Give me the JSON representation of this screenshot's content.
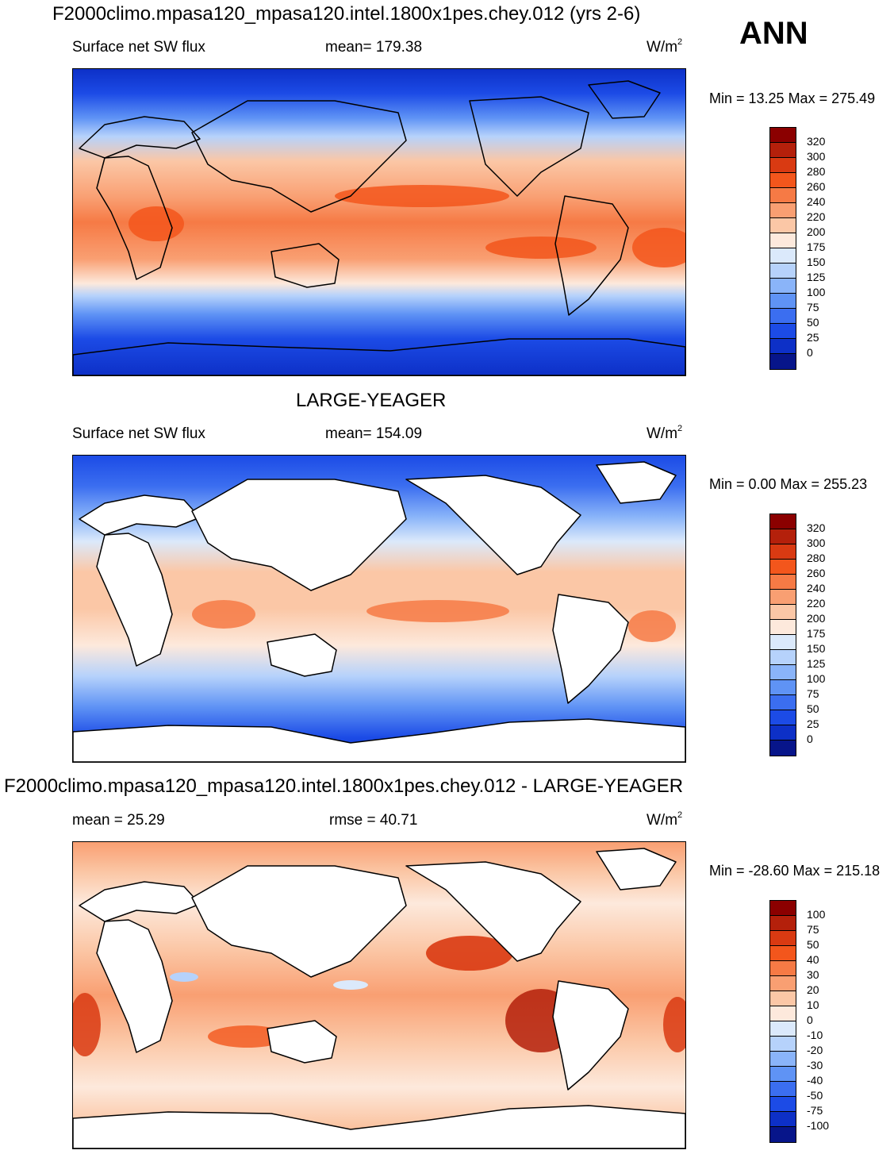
{
  "season": "ANN",
  "panels": [
    {
      "title": "F2000climo.mpasa120_mpasa120.intel.1800x1pes.chey.012 (yrs 2-6)",
      "left_text": "Surface net SW flux",
      "center_text": "mean= 179.38",
      "units": "W/m",
      "units_sup": "2",
      "minmax": "Min =   13.25 Max = 275.49",
      "levels": [
        "320",
        "300",
        "280",
        "260",
        "240",
        "220",
        "200",
        "175",
        "150",
        "125",
        "100",
        "75",
        "50",
        "25",
        "0"
      ],
      "colors": [
        "#8b0000",
        "#b4200b",
        "#d93a12",
        "#f3561c",
        "#f67a45",
        "#f99f72",
        "#fbc7a6",
        "#fde9dc",
        "#dbe9fb",
        "#b6d2fb",
        "#8ab4f9",
        "#5f93f5",
        "#3b6ef0",
        "#1c4be6",
        "#0d30c7",
        "#07158a"
      ]
    },
    {
      "title": "LARGE-YEAGER",
      "left_text": "Surface net SW flux",
      "center_text": "mean= 154.09",
      "units": "W/m",
      "units_sup": "2",
      "minmax": "Min =    0.00 Max = 255.23",
      "levels": [
        "320",
        "300",
        "280",
        "260",
        "240",
        "220",
        "200",
        "175",
        "150",
        "125",
        "100",
        "75",
        "50",
        "25",
        "0"
      ],
      "colors": [
        "#8b0000",
        "#b4200b",
        "#d93a12",
        "#f3561c",
        "#f67a45",
        "#f99f72",
        "#fbc7a6",
        "#fde9dc",
        "#dbe9fb",
        "#b6d2fb",
        "#8ab4f9",
        "#5f93f5",
        "#3b6ef0",
        "#1c4be6",
        "#0d30c7",
        "#07158a"
      ]
    },
    {
      "title": "F2000climo.mpasa120_mpasa120.intel.1800x1pes.chey.012 - LARGE-YEAGER",
      "left_text": "mean =  25.29",
      "center_text": "rmse =  40.71",
      "units": "W/m",
      "units_sup": "2",
      "minmax": "Min = -28.60 Max = 215.18",
      "levels": [
        "100",
        "75",
        "50",
        "40",
        "30",
        "20",
        "10",
        "0",
        "-10",
        "-20",
        "-30",
        "-40",
        "-50",
        "-75",
        "-100"
      ],
      "colors": [
        "#8b0000",
        "#b4200b",
        "#d93a12",
        "#f3561c",
        "#f67a45",
        "#f99f72",
        "#fbc7a6",
        "#fde9dc",
        "#dbe9fb",
        "#b6d2fb",
        "#8ab4f9",
        "#5f93f5",
        "#3b6ef0",
        "#1c4be6",
        "#0d30c7",
        "#07158a"
      ]
    }
  ]
}
